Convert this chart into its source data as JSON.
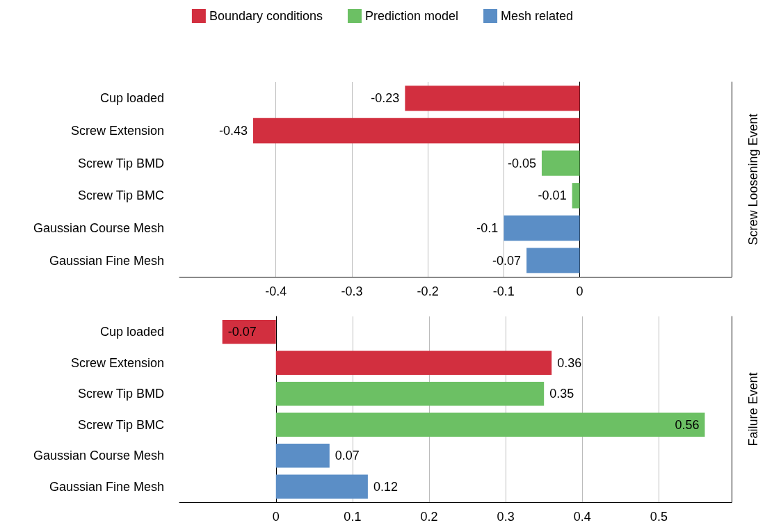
{
  "chart_data": [
    {
      "type": "bar",
      "orientation": "horizontal",
      "categories": [
        "Cup loaded",
        "Screw Extension",
        "Screw Tip BMD",
        "Screw Tip BMC",
        "Gaussian Course Mesh",
        "Gaussian Fine Mesh"
      ],
      "y2label": "Screw Loosening Event",
      "xlim": [
        -0.527,
        0.2
      ],
      "xticks": [
        -0.4,
        -0.3,
        -0.2,
        -0.1,
        0
      ],
      "grid": "x",
      "legend": "top",
      "data_labels": true,
      "series": [
        {
          "name": "Boundary conditions",
          "color": "#d22f3f",
          "values": [
            -0.23,
            -0.43,
            null,
            null,
            null,
            null
          ]
        },
        {
          "name": "Prediction model",
          "color": "#6cc064",
          "values": [
            null,
            null,
            -0.05,
            -0.01,
            null,
            null
          ]
        },
        {
          "name": "Mesh related",
          "color": "#5b8ec6",
          "values": [
            null,
            null,
            null,
            null,
            -0.1,
            -0.07
          ]
        }
      ]
    },
    {
      "type": "bar",
      "orientation": "horizontal",
      "categories": [
        "Cup loaded",
        "Screw Extension",
        "Screw Tip BMD",
        "Screw Tip BMC",
        "Gaussian Course Mesh",
        "Gaussian Fine Mesh"
      ],
      "y2label": "Failure Event",
      "xlim": [
        -0.126,
        0.595
      ],
      "xticks": [
        0,
        0.1,
        0.2,
        0.3,
        0.4,
        0.5
      ],
      "grid": "x",
      "data_labels": true,
      "series": [
        {
          "color": "#d22f3f",
          "values": [
            -0.07,
            0.36,
            null,
            null,
            null,
            null
          ]
        },
        {
          "color": "#6cc064",
          "values": [
            null,
            null,
            0.35,
            0.56,
            null,
            null
          ]
        },
        {
          "color": "#5b8ec6",
          "values": [
            null,
            null,
            null,
            null,
            0.07,
            0.12
          ]
        }
      ]
    }
  ]
}
